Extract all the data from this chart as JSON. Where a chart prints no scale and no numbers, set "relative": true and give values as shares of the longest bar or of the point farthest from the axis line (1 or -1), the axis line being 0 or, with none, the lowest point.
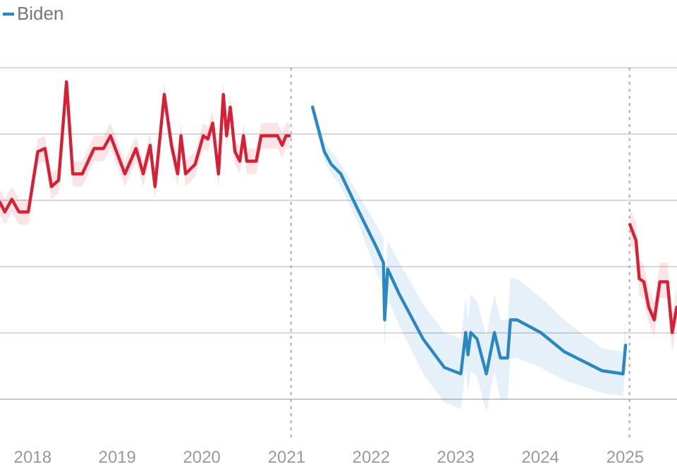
{
  "chart_data": {
    "type": "line",
    "relative": true,
    "grid": true,
    "legend": "top left",
    "xlim": [
      "2017-08-13",
      "2025-08-13"
    ],
    "xticks": [
      "2018",
      "2019",
      "2020",
      "2021",
      "2022",
      "2023",
      "2024",
      "2025"
    ],
    "ref_lines": [
      {
        "axis": "x",
        "value": "2021-01-20",
        "color": "#aaaaaa",
        "line_style": "dotted"
      },
      {
        "axis": "x",
        "value": "2025-01-20",
        "color": "#aaaaaa",
        "line_style": "dotted"
      }
    ],
    "series": [
      {
        "color": "#d62035",
        "x": [
          "2017-08-13",
          "2017-09-03",
          "2017-10-03",
          "2017-11-03",
          "2017-12-13",
          "2018-01-23",
          "2018-02-23",
          "2018-03-23",
          "2018-04-23",
          "2018-05-27",
          "2018-06-23",
          "2018-08-03",
          "2018-09-23",
          "2018-11-03",
          "2018-12-03",
          "2019-02-03",
          "2019-03-23",
          "2019-04-23",
          "2019-05-23",
          "2019-06-13",
          "2019-07-23",
          "2019-08-23",
          "2019-09-19",
          "2019-10-03",
          "2019-10-23",
          "2019-12-03",
          "2020-01-07",
          "2020-01-27",
          "2020-02-17",
          "2020-03-13",
          "2020-04-03",
          "2020-04-17",
          "2020-05-03",
          "2020-05-23",
          "2020-06-13",
          "2020-06-29",
          "2020-07-13",
          "2020-08-23",
          "2020-09-13",
          "2020-11-23",
          "2020-12-13",
          "2020-12-29",
          "2021-01-13"
        ],
        "values": [
          0.62,
          0.59,
          0.63,
          0.59,
          0.59,
          0.78,
          0.79,
          0.67,
          0.69,
          1,
          0.71,
          0.71,
          0.79,
          0.79,
          0.83,
          0.71,
          0.79,
          0.71,
          0.8,
          0.67,
          0.96,
          0.8,
          0.71,
          0.83,
          0.71,
          0.74,
          0.83,
          0.82,
          0.87,
          0.71,
          0.96,
          0.83,
          0.92,
          0.78,
          0.75,
          0.83,
          0.75,
          0.75,
          0.83,
          0.83,
          0.8,
          0.83,
          0.83
        ],
        "lower": [
          0.58,
          0.55,
          0.59,
          0.55,
          0.55,
          0.74,
          0.75,
          0.63,
          0.65,
          0.96,
          0.67,
          0.67,
          0.75,
          0.75,
          0.79,
          0.67,
          0.75,
          0.67,
          0.76,
          0.63,
          0.92,
          0.76,
          0.67,
          0.79,
          0.67,
          0.7,
          0.79,
          0.78,
          0.83,
          0.67,
          0.92,
          0.79,
          0.88,
          0.74,
          0.71,
          0.79,
          0.71,
          0.71,
          0.79,
          0.79,
          0.76,
          0.79,
          0.79
        ],
        "upper": [
          0.66,
          0.63,
          0.67,
          0.63,
          0.63,
          0.82,
          0.83,
          0.71,
          0.73,
          1,
          0.75,
          0.75,
          0.83,
          0.83,
          0.87,
          0.75,
          0.83,
          0.75,
          0.84,
          0.71,
          1,
          0.84,
          0.75,
          0.87,
          0.75,
          0.78,
          0.87,
          0.86,
          0.91,
          0.75,
          1,
          0.87,
          0.96,
          0.82,
          0.79,
          0.87,
          0.79,
          0.79,
          0.87,
          0.87,
          0.84,
          0.87,
          0.87
        ]
      },
      {
        "name": "Biden",
        "color": "#2a87c2",
        "x": [
          "2021-04-23",
          "2021-06-13",
          "2021-07-13",
          "2021-08-23",
          "2021-11-03",
          "2022-01-23",
          "2022-02-23",
          "2022-02-28",
          "2022-03-13",
          "2022-05-03",
          "2022-08-13",
          "2022-11-13",
          "2023-01-23",
          "2023-02-13",
          "2023-02-23",
          "2023-03-07",
          "2023-04-03",
          "2023-05-13",
          "2023-06-17",
          "2023-07-13",
          "2023-08-13",
          "2023-08-25",
          "2023-09-23",
          "2024-01-03",
          "2024-04-13",
          "2024-09-23",
          "2024-12-23",
          "2025-01-03"
        ],
        "values": [
          0.92,
          0.78,
          0.74,
          0.71,
          0.6,
          0.48,
          0.43,
          0.25,
          0.41,
          0.33,
          0.19,
          0.1,
          0.08,
          0.21,
          0.14,
          0.21,
          0.19,
          0.08,
          0.21,
          0.13,
          0.13,
          0.25,
          0.25,
          0.21,
          0.15,
          0.09,
          0.08,
          0.17
        ],
        "lower": [
          0.9,
          0.75,
          0.71,
          0.67,
          0.56,
          0.4,
          0.35,
          0.16,
          0.32,
          0.23,
          0.08,
          -0.01,
          -0.03,
          0.1,
          0.02,
          0.09,
          0.07,
          -0.04,
          0.09,
          0,
          0,
          0.13,
          0.13,
          0.1,
          0.06,
          0.02,
          0.01,
          0.1
        ],
        "upper": [
          0.94,
          0.81,
          0.78,
          0.74,
          0.65,
          0.55,
          0.51,
          0.35,
          0.5,
          0.43,
          0.3,
          0.21,
          0.19,
          0.32,
          0.25,
          0.33,
          0.31,
          0.2,
          0.33,
          0.25,
          0.25,
          0.38,
          0.38,
          0.32,
          0.25,
          0.16,
          0.15,
          0.25
        ]
      },
      {
        "color": "#d62035",
        "x": [
          "2025-01-22",
          "2025-02-17",
          "2025-03-03",
          "2025-03-23",
          "2025-04-13",
          "2025-05-07",
          "2025-05-31",
          "2025-07-03",
          "2025-07-23",
          "2025-08-12"
        ],
        "values": [
          0.55,
          0.5,
          0.38,
          0.37,
          0.29,
          0.25,
          0.37,
          0.37,
          0.21,
          0.29
        ],
        "lower": [
          0.49,
          0.45,
          0.33,
          0.31,
          0.24,
          0.2,
          0.32,
          0.32,
          0.15,
          0.24
        ],
        "upper": [
          0.6,
          0.56,
          0.44,
          0.42,
          0.35,
          0.31,
          0.43,
          0.43,
          0.26,
          0.35
        ]
      }
    ]
  }
}
